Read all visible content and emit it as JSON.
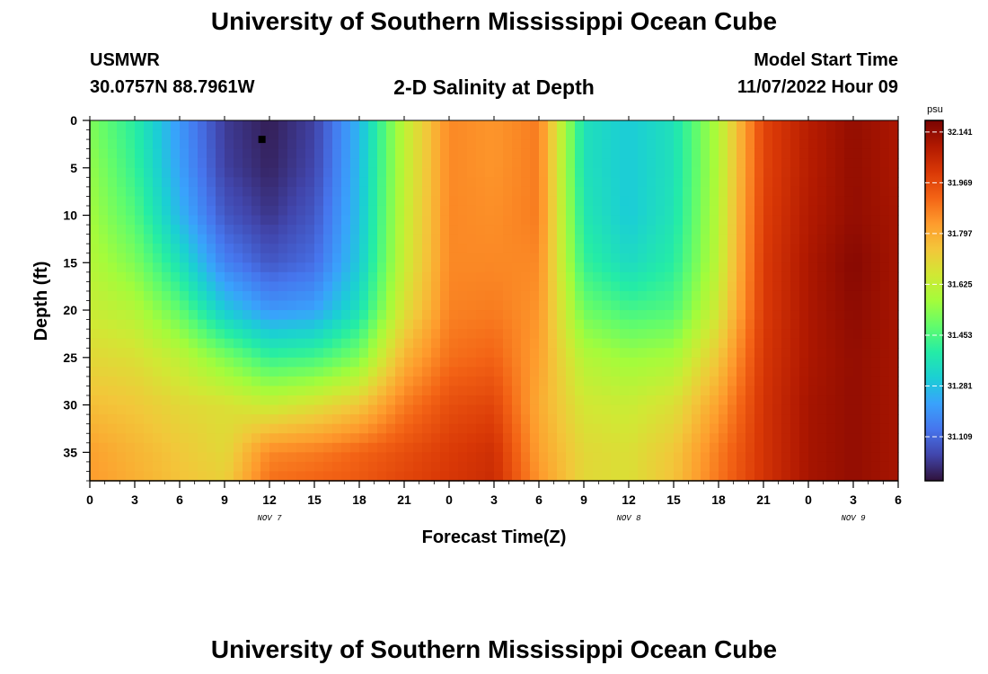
{
  "page": {
    "title_top": "University of Southern Mississippi Ocean Cube",
    "title_bottom": "University of Southern Mississippi Ocean Cube",
    "station": "USMWR",
    "coordinates": "30.0757N  88.7961W",
    "subtitle": "2-D Salinity at Depth",
    "model_start_label": "Model Start Time",
    "model_start_value": "11/07/2022 Hour 09"
  },
  "colors": {
    "colormap": [
      "#30123b",
      "#4145ab",
      "#4675ed",
      "#39a2fc",
      "#1bcfd4",
      "#24eca6",
      "#61fc6c",
      "#a4fc3b",
      "#d1e834",
      "#f3c63a",
      "#fe9b2d",
      "#f36315",
      "#d93806",
      "#b11901",
      "#7a0402"
    ],
    "marker": "#000000"
  },
  "chart_data": {
    "type": "heatmap",
    "title": "2-D Salinity at Depth",
    "xlabel": "Forecast Time(Z)",
    "ylabel": "Depth (ft)",
    "x_tick_labels": [
      "0",
      "3",
      "6",
      "9",
      "12",
      "15",
      "18",
      "21",
      "0",
      "3",
      "6",
      "9",
      "12",
      "15",
      "18",
      "21",
      "0",
      "3",
      "6"
    ],
    "x_range_hours": [
      0,
      54
    ],
    "day_labels": [
      {
        "label": "NOV 7",
        "hour": 12
      },
      {
        "label": "NOV 8",
        "hour": 36
      },
      {
        "label": "NOV 9",
        "hour": 51
      }
    ],
    "y_tick_labels": [
      "0",
      "5",
      "10",
      "15",
      "20",
      "25",
      "30",
      "35"
    ],
    "ylim": [
      38,
      0
    ],
    "colorbar": {
      "unit": "psu",
      "tick_labels": [
        "32.141",
        "31.969",
        "31.797",
        "31.625",
        "31.453",
        "31.281",
        "31.109"
      ],
      "min": 30.96,
      "max": 32.18
    },
    "depth_levels_ft": [
      0,
      5,
      10,
      15,
      20,
      25,
      30,
      35,
      38
    ],
    "salinity_grid": [
      {
        "hour": 0,
        "values": [
          31.52,
          31.55,
          31.57,
          31.6,
          31.64,
          31.7,
          31.76,
          31.82,
          31.83
        ]
      },
      {
        "hour": 3,
        "values": [
          31.4,
          31.42,
          31.46,
          31.52,
          31.6,
          31.68,
          31.74,
          31.78,
          31.79
        ]
      },
      {
        "hour": 6,
        "values": [
          31.2,
          31.22,
          31.26,
          31.36,
          31.48,
          31.62,
          31.7,
          31.74,
          31.75
        ]
      },
      {
        "hour": 9,
        "values": [
          31.03,
          31.04,
          31.08,
          31.16,
          31.3,
          31.52,
          31.68,
          31.7,
          31.72
        ]
      },
      {
        "hour": 12,
        "values": [
          30.98,
          30.99,
          31.02,
          31.08,
          31.2,
          31.42,
          31.64,
          31.86,
          31.9
        ]
      },
      {
        "hour": 15,
        "values": [
          31.04,
          31.05,
          31.08,
          31.12,
          31.22,
          31.44,
          31.68,
          31.88,
          31.92
        ]
      },
      {
        "hour": 18,
        "values": [
          31.26,
          31.27,
          31.28,
          31.3,
          31.36,
          31.52,
          31.74,
          31.92,
          31.94
        ]
      },
      {
        "hour": 21,
        "values": [
          31.62,
          31.62,
          31.63,
          31.64,
          31.68,
          31.78,
          31.88,
          31.96,
          31.98
        ]
      },
      {
        "hour": 24,
        "values": [
          31.86,
          31.86,
          31.86,
          31.86,
          31.87,
          31.9,
          31.96,
          32.0,
          32.01
        ]
      },
      {
        "hour": 27,
        "values": [
          31.84,
          31.84,
          31.85,
          31.86,
          31.88,
          31.92,
          31.98,
          32.03,
          32.04
        ]
      },
      {
        "hour": 30,
        "values": [
          31.88,
          31.88,
          31.88,
          31.86,
          31.84,
          31.82,
          31.8,
          31.82,
          31.84
        ]
      },
      {
        "hour": 33,
        "values": [
          31.36,
          31.36,
          31.38,
          31.42,
          31.5,
          31.6,
          31.66,
          31.7,
          31.7
        ]
      },
      {
        "hour": 36,
        "values": [
          31.3,
          31.3,
          31.3,
          31.34,
          31.44,
          31.56,
          31.64,
          31.68,
          31.68
        ]
      },
      {
        "hour": 39,
        "values": [
          31.36,
          31.36,
          31.37,
          31.4,
          31.46,
          31.58,
          31.68,
          31.74,
          31.75
        ]
      },
      {
        "hour": 42,
        "values": [
          31.6,
          31.6,
          31.61,
          31.62,
          31.66,
          31.74,
          31.82,
          31.88,
          31.89
        ]
      },
      {
        "hour": 45,
        "values": [
          31.98,
          31.98,
          31.99,
          32.0,
          32.0,
          32.01,
          32.02,
          32.02,
          32.02
        ]
      },
      {
        "hour": 48,
        "values": [
          32.08,
          32.08,
          32.09,
          32.1,
          32.1,
          32.1,
          32.11,
          32.11,
          32.11
        ]
      },
      {
        "hour": 51,
        "values": [
          32.14,
          32.14,
          32.14,
          32.16,
          32.15,
          32.14,
          32.14,
          32.14,
          32.14
        ]
      },
      {
        "hour": 54,
        "values": [
          32.1,
          32.1,
          32.11,
          32.11,
          32.11,
          32.11,
          32.11,
          32.11,
          32.11
        ]
      }
    ],
    "marker": {
      "hour": 11.5,
      "depth_ft": 2
    }
  }
}
